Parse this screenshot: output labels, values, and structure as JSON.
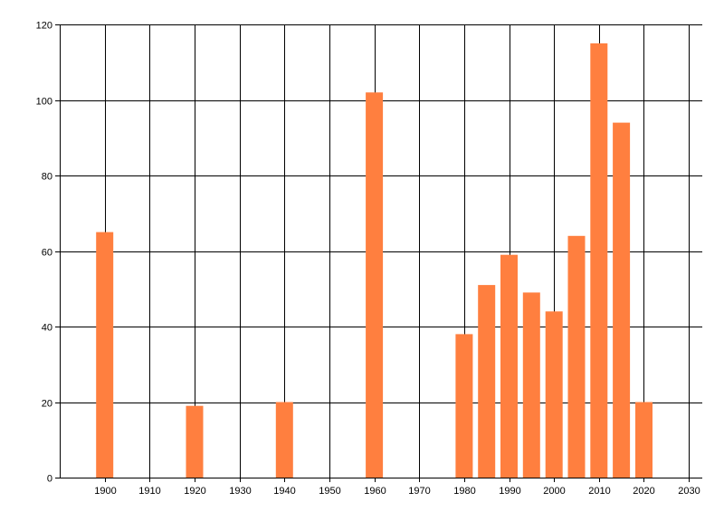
{
  "chart_data": {
    "type": "bar",
    "title": "",
    "xlabel": "",
    "ylabel": "",
    "x": [
      1900,
      1920,
      1940,
      1960,
      1980,
      1985,
      1990,
      1995,
      2000,
      2005,
      2010,
      2015,
      2020
    ],
    "values": [
      65,
      19,
      20,
      102,
      38,
      51,
      59,
      49,
      44,
      64,
      115,
      94,
      20
    ],
    "xlim": [
      1890,
      2033
    ],
    "ylim": [
      0,
      120
    ],
    "x_ticks": [
      1900,
      1910,
      1920,
      1930,
      1940,
      1950,
      1960,
      1970,
      1980,
      1990,
      2000,
      2010,
      2020,
      2030
    ],
    "y_ticks": [
      0,
      20,
      40,
      60,
      80,
      100,
      120
    ],
    "grid": true,
    "legend": "none",
    "bar_color": "#FF7F3F",
    "grid_color": "#000000",
    "axis_color": "#000000"
  }
}
